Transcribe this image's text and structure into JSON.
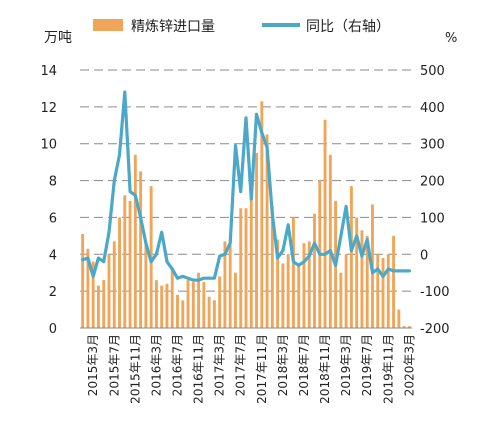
{
  "chart_data": {
    "type": "bar+line",
    "title": "",
    "left_unit": "万吨",
    "right_unit": "%",
    "legend": [
      {
        "name": "精炼锌进口量",
        "kind": "bar",
        "color": "#F0A65A"
      },
      {
        "name": "同比（右轴）",
        "kind": "line",
        "color": "#4BA8C8"
      }
    ],
    "legend_position": "top",
    "grid": "dashed-horizontal",
    "ylim_left": [
      0,
      14
    ],
    "yticks_left": [
      "0",
      "2",
      "4",
      "6",
      "8",
      "10",
      "12",
      "14"
    ],
    "ylim_right": [
      -200,
      500
    ],
    "yticks_right": [
      "-200",
      "-100",
      "0",
      "100",
      "200",
      "300",
      "400",
      "500"
    ],
    "x_tick_labels": [
      "2015年3月",
      "2015年7月",
      "2015年11月",
      "2016年3月",
      "2016年7月",
      "2016年11月",
      "2017年3月",
      "2017年7月",
      "2017年11月",
      "2018年3月",
      "2018年7月",
      "2018年11月",
      "2019年3月",
      "2019年7月",
      "2019年11月",
      "2020年3月"
    ],
    "categories": [
      "2015-01",
      "2015-02",
      "2015-03",
      "2015-04",
      "2015-05",
      "2015-06",
      "2015-07",
      "2015-08",
      "2015-09",
      "2015-10",
      "2015-11",
      "2015-12",
      "2016-01",
      "2016-02",
      "2016-03",
      "2016-04",
      "2016-05",
      "2016-06",
      "2016-07",
      "2016-08",
      "2016-09",
      "2016-10",
      "2016-11",
      "2016-12",
      "2017-01",
      "2017-02",
      "2017-03",
      "2017-04",
      "2017-05",
      "2017-06",
      "2017-07",
      "2017-08",
      "2017-09",
      "2017-10",
      "2017-11",
      "2017-12",
      "2018-01",
      "2018-02",
      "2018-03",
      "2018-04",
      "2018-05",
      "2018-06",
      "2018-07",
      "2018-08",
      "2018-09",
      "2018-10",
      "2018-11",
      "2018-12",
      "2019-01",
      "2019-02",
      "2019-03",
      "2019-04",
      "2019-05",
      "2019-06",
      "2019-07",
      "2019-08",
      "2019-09",
      "2019-10",
      "2019-11",
      "2019-12",
      "2020-01",
      "2020-02",
      "2020-03"
    ],
    "series": [
      {
        "name": "精炼锌进口量",
        "axis": "left",
        "values": [
          5.1,
          4.3,
          3.6,
          2.3,
          2.6,
          4.0,
          4.7,
          6.0,
          7.2,
          6.9,
          9.4,
          8.5,
          4.5,
          7.7,
          2.6,
          2.3,
          2.4,
          3.3,
          1.8,
          1.5,
          2.6,
          2.5,
          3.0,
          2.5,
          1.7,
          1.5,
          2.8,
          4.7,
          4.5,
          3.0,
          6.5,
          6.5,
          7.2,
          9.5,
          12.3,
          10.5,
          6.6,
          4.8,
          3.5,
          4.0,
          6.0,
          3.4,
          4.6,
          4.7,
          6.2,
          8.0,
          11.3,
          9.4,
          6.9,
          3.0,
          4.0,
          7.7,
          6.0,
          5.3,
          5.0,
          6.7,
          4.0,
          3.8,
          4.0,
          5.0,
          1.0,
          0.1,
          0.1
        ]
      },
      {
        "name": "同比（右轴）",
        "axis": "right",
        "values": [
          -15,
          -10,
          -60,
          -10,
          -20,
          60,
          200,
          270,
          440,
          170,
          160,
          100,
          30,
          -20,
          0,
          60,
          -20,
          -40,
          -65,
          -60,
          -65,
          -70,
          -70,
          -65,
          -65,
          -65,
          -5,
          0,
          30,
          295,
          170,
          370,
          150,
          380,
          330,
          290,
          110,
          -10,
          10,
          80,
          -20,
          -30,
          -20,
          -5,
          30,
          0,
          0,
          10,
          -30,
          50,
          130,
          10,
          50,
          -5,
          40,
          -50,
          -40,
          -60,
          -40,
          -45,
          -45,
          -45,
          -45
        ]
      }
    ]
  }
}
